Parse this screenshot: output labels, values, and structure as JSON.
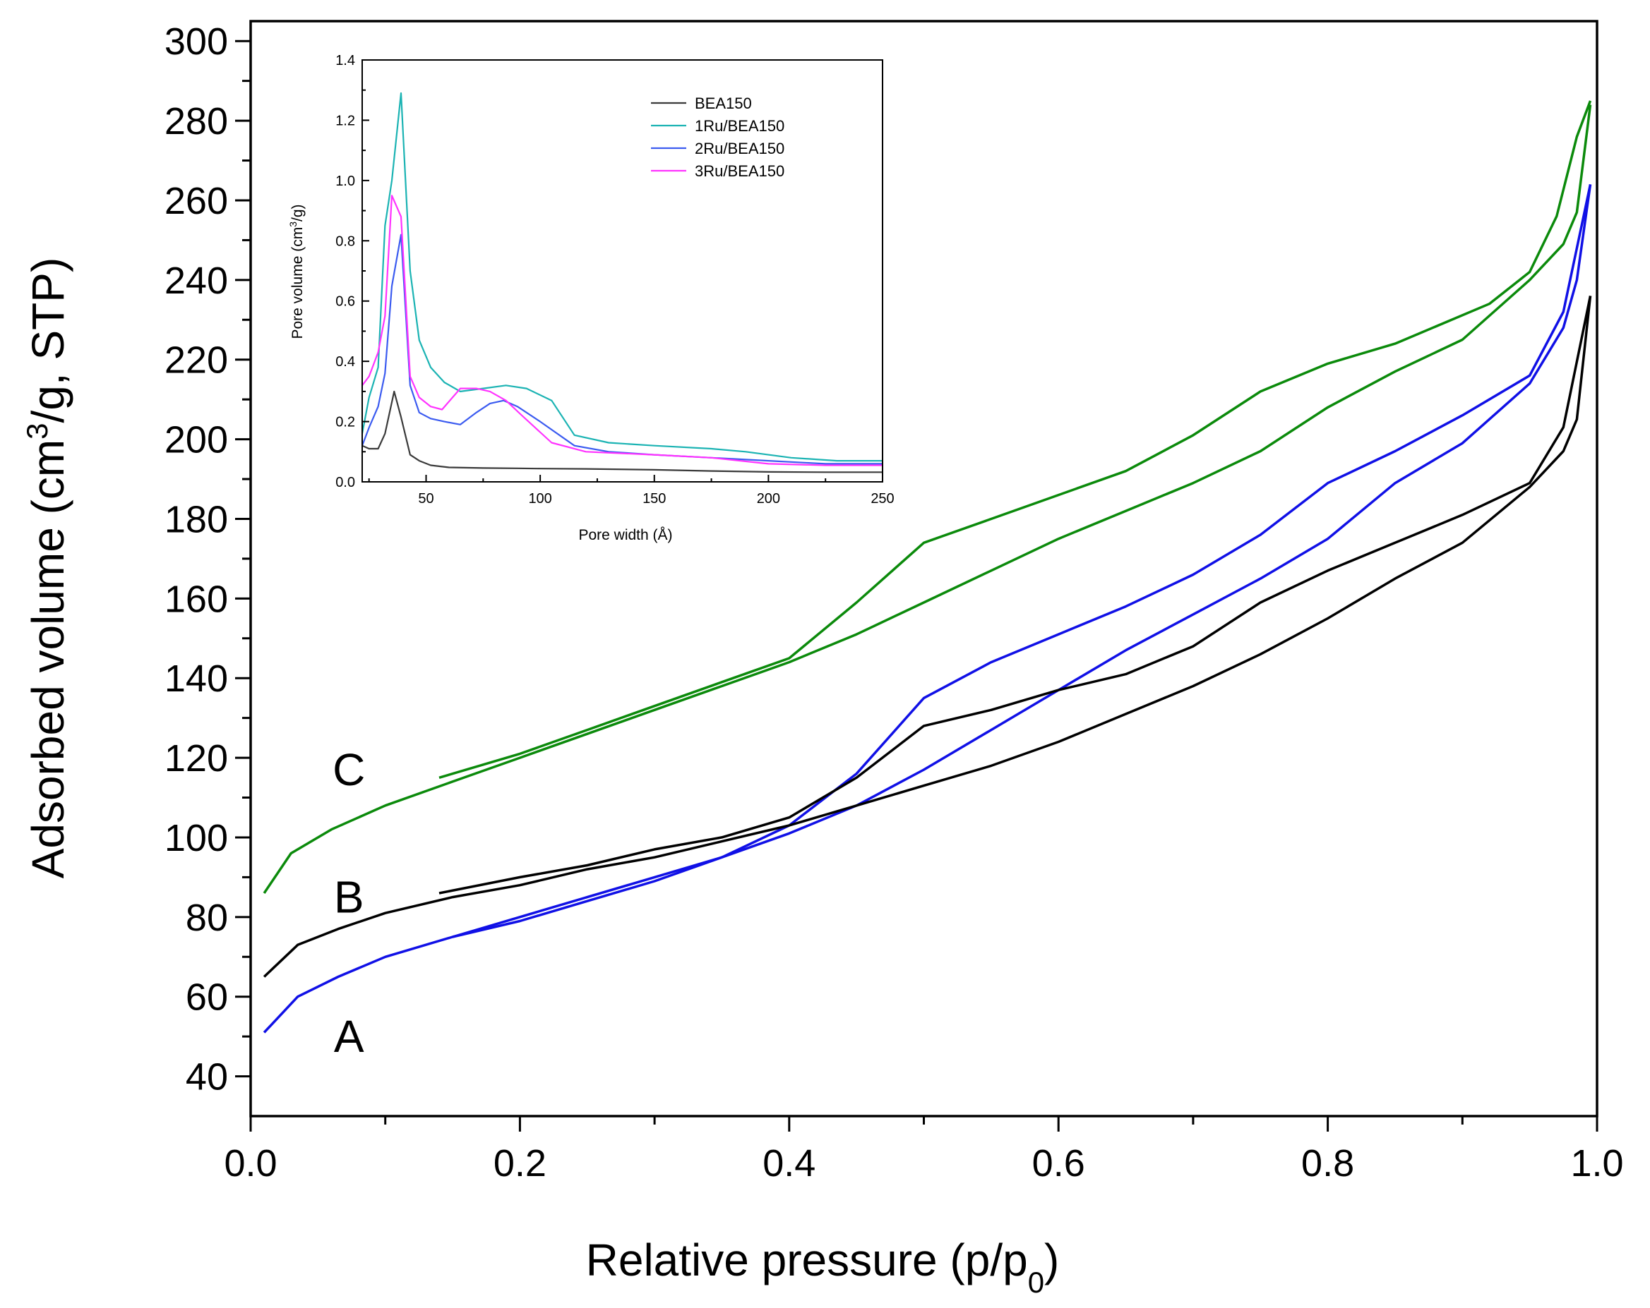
{
  "chart_data": [
    {
      "type": "line",
      "id": "main",
      "title": "",
      "xlabel": "Relative pressure (p/p",
      "xlabel_sub": "0",
      "xlabel_tail": ")",
      "ylabel": "Adsorbed volume (cm",
      "ylabel_sup": "3",
      "ylabel_tail": "/g, STP)",
      "xlim": [
        0.0,
        1.0
      ],
      "ylim": [
        30,
        305
      ],
      "x_ticks": [
        "0.0",
        "0.2",
        "0.4",
        "0.6",
        "0.8",
        "1.0"
      ],
      "y_ticks": [
        "40",
        "60",
        "80",
        "100",
        "120",
        "140",
        "160",
        "180",
        "200",
        "220",
        "240",
        "260",
        "280",
        "300"
      ],
      "curve_labels": [
        {
          "text": "C",
          "x": 0.073,
          "y": 117
        },
        {
          "text": "B",
          "x": 0.073,
          "y": 85
        },
        {
          "text": "A",
          "x": 0.073,
          "y": 50
        }
      ],
      "series": [
        {
          "name": "A adsorption",
          "color": "#1010e6",
          "x": [
            0.01,
            0.035,
            0.065,
            0.1,
            0.15,
            0.2,
            0.25,
            0.3,
            0.35,
            0.4,
            0.45,
            0.5,
            0.55,
            0.6,
            0.65,
            0.7,
            0.75,
            0.8,
            0.85,
            0.9,
            0.95,
            0.975,
            0.985,
            0.995
          ],
          "y": [
            51,
            60,
            65,
            70,
            75,
            80,
            85,
            90,
            95,
            101,
            108,
            117,
            127,
            137,
            147,
            156,
            165,
            175,
            189,
            199,
            214,
            228,
            240,
            264
          ]
        },
        {
          "name": "A desorption",
          "color": "#1010e6",
          "x": [
            0.995,
            0.975,
            0.95,
            0.9,
            0.85,
            0.8,
            0.75,
            0.7,
            0.65,
            0.6,
            0.55,
            0.5,
            0.45,
            0.4,
            0.35,
            0.3,
            0.25,
            0.2,
            0.15
          ],
          "y": [
            264,
            232,
            216,
            206,
            197,
            189,
            176,
            166,
            158,
            151,
            144,
            135,
            116,
            103,
            95,
            89,
            84,
            79,
            75
          ]
        },
        {
          "name": "B adsorption",
          "color": "#000000",
          "x": [
            0.01,
            0.035,
            0.065,
            0.1,
            0.15,
            0.2,
            0.25,
            0.3,
            0.35,
            0.4,
            0.45,
            0.5,
            0.55,
            0.6,
            0.65,
            0.7,
            0.75,
            0.8,
            0.85,
            0.9,
            0.95,
            0.975,
            0.985,
            0.995
          ],
          "y": [
            65,
            73,
            77,
            81,
            85,
            88,
            92,
            95,
            99,
            103,
            108,
            113,
            118,
            124,
            131,
            138,
            146,
            155,
            165,
            174,
            188,
            197,
            205,
            236
          ]
        },
        {
          "name": "B desorption",
          "color": "#000000",
          "x": [
            0.995,
            0.975,
            0.95,
            0.9,
            0.85,
            0.8,
            0.75,
            0.7,
            0.65,
            0.6,
            0.55,
            0.5,
            0.45,
            0.4,
            0.35,
            0.3,
            0.25,
            0.2,
            0.14
          ],
          "y": [
            236,
            203,
            189,
            181,
            174,
            167,
            159,
            148,
            141,
            137,
            132,
            128,
            115,
            105,
            100,
            97,
            93,
            90,
            86
          ]
        },
        {
          "name": "C adsorption",
          "color": "#0b8a0b",
          "x": [
            0.01,
            0.03,
            0.06,
            0.1,
            0.15,
            0.2,
            0.25,
            0.3,
            0.35,
            0.4,
            0.45,
            0.5,
            0.55,
            0.6,
            0.65,
            0.7,
            0.75,
            0.8,
            0.85,
            0.9,
            0.95,
            0.975,
            0.985,
            0.995
          ],
          "y": [
            86,
            96,
            102,
            108,
            114,
            120,
            126,
            132,
            138,
            144,
            151,
            159,
            167,
            175,
            182,
            189,
            197,
            208,
            217,
            225,
            240,
            249,
            257,
            284
          ]
        },
        {
          "name": "C desorption",
          "color": "#0b8a0b",
          "x": [
            0.995,
            0.985,
            0.97,
            0.95,
            0.92,
            0.85,
            0.8,
            0.75,
            0.7,
            0.65,
            0.6,
            0.55,
            0.5,
            0.45,
            0.4,
            0.35,
            0.3,
            0.25,
            0.2,
            0.14
          ],
          "y": [
            285,
            276,
            256,
            242,
            234,
            224,
            219,
            212,
            201,
            192,
            186,
            180,
            174,
            159,
            145,
            139,
            133,
            127,
            121,
            115
          ]
        }
      ]
    },
    {
      "type": "line",
      "id": "inset",
      "title": "",
      "xlabel": "Pore width (Å)",
      "ylabel": "Pore volume (cm",
      "ylabel_sup": "3",
      "ylabel_tail": "/g)",
      "xlim": [
        22,
        250
      ],
      "ylim": [
        0.0,
        1.4
      ],
      "x_ticks": [
        50,
        100,
        150,
        200,
        250
      ],
      "x_tick_labels": [
        "50",
        "100",
        "150",
        "200",
        "250"
      ],
      "y_ticks": [
        0.0,
        0.2,
        0.4,
        0.6,
        0.8,
        1.0,
        1.2,
        1.4
      ],
      "y_tick_labels": [
        "0.0",
        "0.2",
        "0.4",
        "0.6",
        "0.8",
        "1.0",
        "1.2",
        "1.4"
      ],
      "legend_position": "top-center",
      "series": [
        {
          "name": "BEA150",
          "color": "#3a3a3a",
          "x": [
            22,
            25,
            29,
            32,
            36,
            39,
            43,
            47,
            52,
            60,
            75,
            90,
            100,
            120,
            150,
            175,
            200,
            225,
            250
          ],
          "y": [
            0.12,
            0.11,
            0.11,
            0.16,
            0.3,
            0.215,
            0.09,
            0.07,
            0.055,
            0.048,
            0.046,
            0.045,
            0.044,
            0.043,
            0.04,
            0.036,
            0.033,
            0.032,
            0.032
          ]
        },
        {
          "name": "1Ru/BEA150",
          "color": "#1bb3b3",
          "x": [
            22,
            25,
            29,
            32,
            35,
            39,
            43,
            47,
            52,
            58,
            65,
            75,
            85,
            94,
            105,
            115,
            130,
            150,
            175,
            190,
            210,
            230,
            250
          ],
          "y": [
            0.16,
            0.28,
            0.38,
            0.85,
            1.0,
            1.29,
            0.7,
            0.47,
            0.38,
            0.33,
            0.3,
            0.31,
            0.32,
            0.31,
            0.27,
            0.155,
            0.13,
            0.12,
            0.11,
            0.1,
            0.08,
            0.07,
            0.07
          ]
        },
        {
          "name": "2Ru/BEA150",
          "color": "#3b5bf0",
          "x": [
            22,
            25,
            29,
            32,
            35,
            39,
            43,
            47,
            52,
            58,
            65,
            72,
            78,
            84,
            90,
            100,
            115,
            130,
            150,
            175,
            200,
            225,
            250
          ],
          "y": [
            0.12,
            0.18,
            0.25,
            0.36,
            0.65,
            0.82,
            0.32,
            0.23,
            0.21,
            0.2,
            0.19,
            0.23,
            0.26,
            0.27,
            0.25,
            0.2,
            0.12,
            0.1,
            0.09,
            0.08,
            0.07,
            0.06,
            0.06
          ]
        },
        {
          "name": "3Ru/BEA150",
          "color": "#ff33ff",
          "x": [
            22,
            25,
            29,
            32,
            35,
            39,
            43,
            47,
            52,
            57,
            65,
            72,
            78,
            85,
            92,
            105,
            120,
            150,
            175,
            200,
            225,
            250
          ],
          "y": [
            0.32,
            0.35,
            0.43,
            0.55,
            0.95,
            0.88,
            0.35,
            0.28,
            0.25,
            0.24,
            0.31,
            0.31,
            0.3,
            0.27,
            0.22,
            0.13,
            0.1,
            0.09,
            0.08,
            0.06,
            0.055,
            0.055
          ]
        }
      ]
    }
  ]
}
